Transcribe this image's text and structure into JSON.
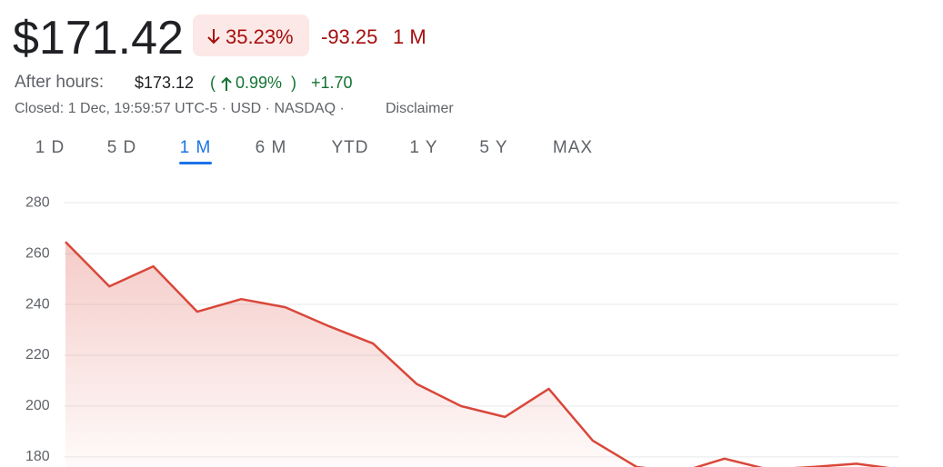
{
  "header": {
    "price": "$171.42",
    "change_percent": "35.23%",
    "change_value": "-93.25",
    "period": "1 M",
    "after_hours_label": "After hours:",
    "after_hours_price": "$173.12",
    "after_hours_open": "(",
    "after_hours_percent": "0.99%",
    "after_hours_close": ")",
    "after_hours_change": "+1.70",
    "status": "Closed: 1 Dec, 19:59:57 UTC-5 · USD · NASDAQ ·",
    "disclaimer": "Disclaimer"
  },
  "tabs": [
    "1 D",
    "5 D",
    "1 M",
    "6 M",
    "YTD",
    "1 Y",
    "5 Y",
    "MAX"
  ],
  "selected_tab": 2,
  "chart_data": {
    "type": "area",
    "color": "#d9473a",
    "values": [
      264.6,
      247.1,
      255,
      237.1,
      242.1,
      238.9,
      231.4,
      224.6,
      208.6,
      200,
      195.7,
      206.8,
      186.4,
      176,
      174,
      179.3,
      175,
      176,
      177.3,
      175
    ],
    "ylim": [
      176,
      284
    ],
    "yticks": [
      180,
      200,
      220,
      240,
      260,
      280
    ],
    "grid": true
  }
}
